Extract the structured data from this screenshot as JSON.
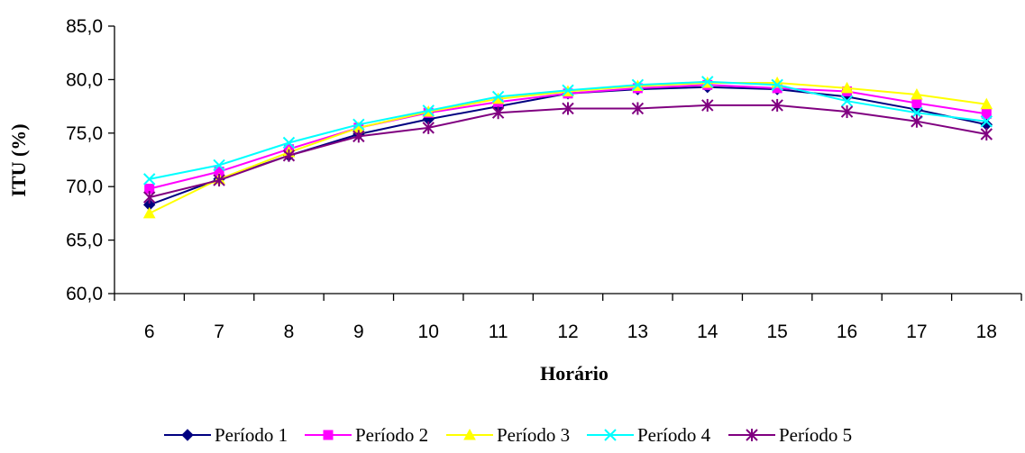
{
  "chart_data": {
    "type": "line",
    "title": "",
    "xlabel": "Horário",
    "ylabel": "ITU (%)",
    "x": [
      "6",
      "7",
      "8",
      "9",
      "10",
      "11",
      "12",
      "13",
      "14",
      "15",
      "16",
      "17",
      "18"
    ],
    "ylim": [
      60,
      85
    ],
    "yticks": [
      "60,0",
      "65,0",
      "70,0",
      "75,0",
      "80,0",
      "85,0"
    ],
    "ytick_values": [
      60,
      65,
      70,
      75,
      80,
      85
    ],
    "grid": false,
    "legend_position": "bottom",
    "series": [
      {
        "name": "Período 1",
        "color": "#000080",
        "marker": "diamond",
        "values": [
          68.3,
          70.7,
          72.9,
          74.9,
          76.3,
          77.5,
          78.7,
          79.1,
          79.3,
          79.1,
          78.4,
          77.2,
          75.8
        ]
      },
      {
        "name": "Período 2",
        "color": "#FF00FF",
        "marker": "square",
        "values": [
          69.8,
          71.4,
          73.5,
          75.5,
          76.9,
          77.9,
          78.7,
          79.2,
          79.5,
          79.2,
          78.9,
          77.8,
          76.8
        ]
      },
      {
        "name": "Período 3",
        "color": "#FFFF00",
        "marker": "triangle",
        "values": [
          67.5,
          70.7,
          73.2,
          75.5,
          77.0,
          78.2,
          78.9,
          79.4,
          79.7,
          79.7,
          79.2,
          78.6,
          77.7
        ]
      },
      {
        "name": "Período 4",
        "color": "#00FFFF",
        "marker": "x",
        "values": [
          70.7,
          72.0,
          74.1,
          75.8,
          77.1,
          78.4,
          79.0,
          79.5,
          79.8,
          79.5,
          78.0,
          76.9,
          76.1
        ]
      },
      {
        "name": "Período 5",
        "color": "#800080",
        "marker": "asterisk",
        "values": [
          69.0,
          70.6,
          72.9,
          74.7,
          75.5,
          76.9,
          77.3,
          77.3,
          77.6,
          77.6,
          77.0,
          76.1,
          74.9
        ]
      }
    ]
  }
}
